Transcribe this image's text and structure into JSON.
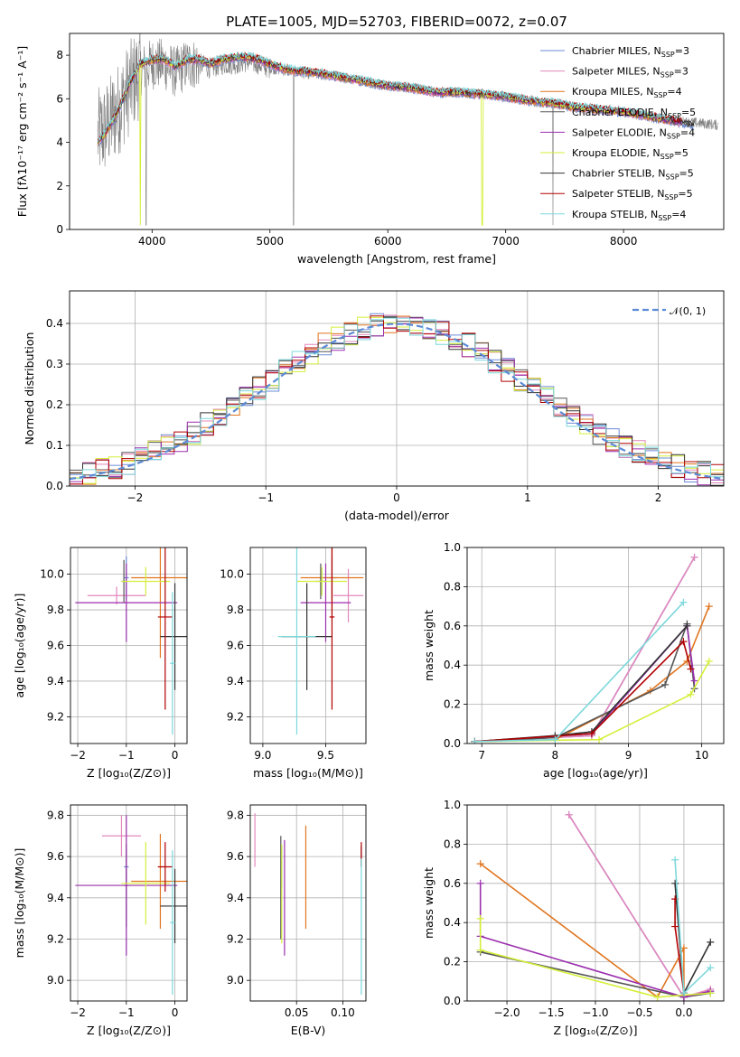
{
  "colors": [
    "#6c8bd7",
    "#e388bd",
    "#e0751f",
    "#555555",
    "#9b2fae",
    "#d5ef3a",
    "#333333",
    "#b10000",
    "#7dd8dc"
  ],
  "chart_data": [
    {
      "id": "spectrum",
      "type": "line",
      "title": "PLATE=1005, MJD=52703, FIBERID=0072, z=0.07",
      "xlabel": "wavelength [Angstrom, rest frame]",
      "ylabel": "Flux [fλ10⁻¹⁷ erg cm⁻² s⁻¹ A⁻¹]",
      "xlim": [
        3300,
        8850
      ],
      "ylim": [
        0,
        9
      ],
      "xticks": [
        "4000",
        "5000",
        "6000",
        "7000",
        "8000"
      ],
      "xtick_values": [
        4000,
        5000,
        6000,
        7000,
        8000
      ],
      "yticks": [
        "0",
        "2",
        "4",
        "6",
        "8"
      ],
      "ytick_values": [
        0,
        2,
        4,
        6,
        8
      ],
      "data_series": {
        "name": "",
        "color": "#808080",
        "x": [
          3540,
          3600,
          3700,
          3800,
          3900,
          4000,
          4100,
          4200,
          4300,
          4400,
          4500,
          4600,
          4700,
          4800,
          4900,
          5000,
          5100,
          5200,
          5400,
          5600,
          5800,
          6000,
          6200,
          6400,
          6600,
          6800,
          7000,
          7200,
          7400,
          7600,
          7800,
          8000,
          8200,
          8400,
          8600,
          8800
        ],
        "y": [
          4.3,
          4.6,
          5.4,
          6.4,
          7.3,
          7.6,
          7.6,
          7.2,
          7.6,
          7.6,
          7.4,
          7.6,
          7.6,
          7.7,
          7.6,
          7.4,
          7.3,
          7.2,
          7.1,
          7.0,
          6.8,
          6.6,
          6.5,
          6.3,
          6.3,
          6.2,
          6.1,
          5.9,
          5.8,
          5.6,
          5.5,
          5.4,
          5.2,
          5.0,
          4.9,
          4.8
        ]
      },
      "model_series": {
        "x": [
          3540,
          3600,
          3700,
          3800,
          3900,
          4000,
          4100,
          4200,
          4300,
          4400,
          4500,
          4600,
          4700,
          4800,
          4900,
          5000,
          5100,
          5200,
          5400,
          5600,
          5800,
          6000,
          6200,
          6400,
          6600,
          6800,
          7000,
          7200,
          7400,
          7600,
          7800,
          8000,
          8200,
          8400,
          8600
        ],
        "y": [
          4.0,
          4.4,
          5.3,
          6.6,
          7.6,
          7.8,
          7.8,
          7.5,
          7.8,
          7.8,
          7.6,
          7.8,
          7.9,
          7.9,
          7.8,
          7.6,
          7.4,
          7.3,
          7.2,
          7.0,
          6.8,
          6.6,
          6.5,
          6.3,
          6.3,
          6.2,
          6.1,
          5.9,
          5.8,
          5.6,
          5.5,
          5.4,
          5.2,
          5.0,
          4.8
        ]
      },
      "legend": [
        {
          "label": "Chabrier MILES, N",
          "sub": "SSP",
          "val": "=3"
        },
        {
          "label": "Salpeter MILES, N",
          "sub": "SSP",
          "val": "=3"
        },
        {
          "label": "Kroupa MILES, N",
          "sub": "SSP",
          "val": "=4"
        },
        {
          "label": "Chabrier ELODIE, N",
          "sub": "SSP",
          "val": "=5"
        },
        {
          "label": "Salpeter ELODIE, N",
          "sub": "SSP",
          "val": "=4"
        },
        {
          "label": "Kroupa ELODIE, N",
          "sub": "SSP",
          "val": "=5"
        },
        {
          "label": "Chabrier STELIB, N",
          "sub": "SSP",
          "val": "=5"
        },
        {
          "label": "Salpeter STELIB, N",
          "sub": "SSP",
          "val": "=5"
        },
        {
          "label": "Kroupa STELIB, N",
          "sub": "SSP",
          "val": "=4"
        }
      ],
      "grid": false
    },
    {
      "id": "residuals",
      "type": "line",
      "title": "",
      "xlabel": "(data-model)/error",
      "ylabel": "Normed distribution",
      "xlim": [
        -2.5,
        2.5
      ],
      "ylim": [
        0,
        0.48
      ],
      "xticks": [
        "−2",
        "−1",
        "0",
        "1",
        "2"
      ],
      "xtick_values": [
        -2,
        -1,
        0,
        1,
        2
      ],
      "yticks": [
        "0.0",
        "0.1",
        "0.2",
        "0.3",
        "0.4"
      ],
      "ytick_values": [
        0,
        0.1,
        0.2,
        0.3,
        0.4
      ],
      "legend": [
        {
          "label": "𝒩(0, 1)"
        }
      ],
      "normal_curve": {
        "mean": 0,
        "sigma": 1,
        "color": "#5b8ad6"
      },
      "hist_edges": [
        -2.5,
        -2.4,
        -2.3,
        -2.2,
        -2.1,
        -2.0,
        -1.9,
        -1.8,
        -1.7,
        -1.6,
        -1.5,
        -1.4,
        -1.3,
        -1.2,
        -1.1,
        -1.0,
        -0.9,
        -0.8,
        -0.7,
        -0.6,
        -0.5,
        -0.4,
        -0.3,
        -0.2,
        -0.1,
        0.0,
        0.1,
        0.2,
        0.3,
        0.4,
        0.5,
        0.6,
        0.7,
        0.8,
        0.9,
        1.0,
        1.1,
        1.2,
        1.3,
        1.4,
        1.5,
        1.6,
        1.7,
        1.8,
        1.9,
        2.0,
        2.1,
        2.2,
        2.3,
        2.4,
        2.5
      ],
      "grid": true
    },
    {
      "id": "age-vs-z",
      "type": "scatter",
      "xlabel": "Z [log₁₀(Z/Z⊙)]",
      "ylabel": "age  [log₁₀(age/yr)]",
      "xlim": [
        -2.15,
        0.25
      ],
      "ylim": [
        9.05,
        10.15
      ],
      "xticks": [
        "−2",
        "−1",
        "0"
      ],
      "xtick_values": [
        -2,
        -1,
        0
      ],
      "yticks": [
        "9.2",
        "9.4",
        "9.6",
        "9.8",
        "10.0"
      ],
      "ytick_values": [
        9.2,
        9.4,
        9.6,
        9.8,
        10.0
      ],
      "points": [
        {
          "x": -1.0,
          "y": 9.98,
          "ex": 0.05,
          "ey": 0.12,
          "c": 0
        },
        {
          "x": -1.2,
          "y": 9.88,
          "ex": 0.6,
          "ey": 0.05,
          "c": 1
        },
        {
          "x": -0.3,
          "y": 9.98,
          "ex": 0.6,
          "ey": 0.45,
          "c": 2
        },
        {
          "x": -1.05,
          "y": 9.96,
          "ex": 0.05,
          "ey": 0.12,
          "c": 3
        },
        {
          "x": -1.0,
          "y": 9.84,
          "ex": 1.05,
          "ey": 0.22,
          "c": 4
        },
        {
          "x": -0.6,
          "y": 9.96,
          "ex": 0.5,
          "ey": 0.08,
          "c": 5
        },
        {
          "x": 0.0,
          "y": 9.65,
          "ex": 0.3,
          "ey": 0.3,
          "c": 6
        },
        {
          "x": -0.2,
          "y": 9.76,
          "ex": 0.15,
          "ey": 0.52,
          "c": 7
        },
        {
          "x": -0.05,
          "y": 9.5,
          "ex": 0.05,
          "ey": 0.4,
          "c": 8
        }
      ]
    },
    {
      "id": "age-vs-mass",
      "type": "scatter",
      "xlabel": "mass [log₁₀(M/M⊙)]",
      "ylabel": "",
      "xlim": [
        8.9,
        9.82
      ],
      "ylim": [
        9.05,
        10.15
      ],
      "xticks": [
        "9.0",
        "9.5"
      ],
      "xtick_values": [
        9.0,
        9.5
      ],
      "yticks": [
        "9.2",
        "9.4",
        "9.6",
        "9.8",
        "10.0"
      ],
      "ytick_values": [
        9.2,
        9.4,
        9.6,
        9.8,
        10.0
      ],
      "points": [
        {
          "x": 9.55,
          "y": 9.98,
          "ex": 0.04,
          "ey": 0.12,
          "c": 0
        },
        {
          "x": 9.68,
          "y": 9.88,
          "ex": 0.12,
          "ey": 0.15,
          "c": 1
        },
        {
          "x": 9.55,
          "y": 9.98,
          "ex": 0.25,
          "ey": 0.2,
          "c": 2
        },
        {
          "x": 9.46,
          "y": 9.96,
          "ex": 0.04,
          "ey": 0.1,
          "c": 3
        },
        {
          "x": 9.5,
          "y": 9.84,
          "ex": 0.2,
          "ey": 0.22,
          "c": 4
        },
        {
          "x": 9.47,
          "y": 9.96,
          "ex": 0.2,
          "ey": 0.08,
          "c": 5
        },
        {
          "x": 9.35,
          "y": 9.65,
          "ex": 0.2,
          "ey": 0.3,
          "c": 6
        },
        {
          "x": 9.55,
          "y": 9.76,
          "ex": 0.02,
          "ey": 0.52,
          "c": 7
        },
        {
          "x": 9.27,
          "y": 9.65,
          "ex": 0.15,
          "ey": 0.55,
          "c": 8
        }
      ]
    },
    {
      "id": "weight-vs-age",
      "type": "line",
      "xlabel": "age  [log₁₀(age/yr)]",
      "ylabel": "mass weight",
      "xlim": [
        6.8,
        10.3
      ],
      "ylim": [
        0,
        1.0
      ],
      "xticks": [
        "7",
        "8",
        "9",
        "10"
      ],
      "xtick_values": [
        7,
        8,
        9,
        10
      ],
      "yticks": [
        "0.0",
        "0.2",
        "0.4",
        "0.6",
        "0.8",
        "1.0"
      ],
      "ytick_values": [
        0,
        0.2,
        0.4,
        0.6,
        0.8,
        1.0
      ],
      "series": [
        {
          "c": 0,
          "x": [
            6.9,
            8.5,
            9.9
          ],
          "y": [
            0.01,
            0.04,
            0.95
          ]
        },
        {
          "c": 1,
          "x": [
            6.9,
            8.5,
            9.9
          ],
          "y": [
            0.01,
            0.04,
            0.95
          ]
        },
        {
          "c": 2,
          "x": [
            6.9,
            8.0,
            9.3,
            9.8,
            10.1
          ],
          "y": [
            0.01,
            0.02,
            0.27,
            0.42,
            0.7
          ]
        },
        {
          "c": 3,
          "x": [
            6.9,
            8.0,
            9.5,
            9.8,
            9.9
          ],
          "y": [
            0.01,
            0.03,
            0.3,
            0.61,
            0.28
          ]
        },
        {
          "c": 4,
          "x": [
            6.9,
            8.5,
            9.8,
            9.9
          ],
          "y": [
            0.01,
            0.05,
            0.6,
            0.32
          ]
        },
        {
          "c": 5,
          "x": [
            6.9,
            8.6,
            9.85,
            10.1
          ],
          "y": [
            0.01,
            0.02,
            0.25,
            0.42
          ]
        },
        {
          "c": 6,
          "x": [
            6.9,
            8.0,
            8.5,
            9.8
          ],
          "y": [
            0.01,
            0.04,
            0.06,
            0.6
          ]
        },
        {
          "c": 7,
          "x": [
            6.9,
            8.5,
            9.75,
            9.85
          ],
          "y": [
            0.01,
            0.05,
            0.52,
            0.38
          ]
        },
        {
          "c": 8,
          "x": [
            6.9,
            8.0,
            9.75
          ],
          "y": [
            0.01,
            0.02,
            0.72
          ]
        }
      ]
    },
    {
      "id": "mass-vs-z",
      "type": "scatter",
      "xlabel": "Z [log₁₀(Z/Z⊙)]",
      "ylabel": "mass [log₁₀(M/M⊙)]",
      "xlim": [
        -2.15,
        0.25
      ],
      "ylim": [
        8.9,
        9.85
      ],
      "xticks": [
        "−2",
        "−1",
        "0"
      ],
      "xtick_values": [
        -2,
        -1,
        0
      ],
      "yticks": [
        "9.0",
        "9.2",
        "9.4",
        "9.6",
        "9.8"
      ],
      "ytick_values": [
        9.0,
        9.2,
        9.4,
        9.6,
        9.8
      ],
      "points": [
        {
          "x": -1.0,
          "y": 9.55,
          "ex": 0.05,
          "ey": 0.08,
          "c": 0
        },
        {
          "x": -1.1,
          "y": 9.7,
          "ex": 0.4,
          "ey": 0.1,
          "c": 1
        },
        {
          "x": -0.3,
          "y": 9.48,
          "ex": 0.6,
          "ey": 0.23,
          "c": 2
        },
        {
          "x": -1.0,
          "y": 9.46,
          "ex": 0.05,
          "ey": 0.2,
          "c": 3
        },
        {
          "x": -1.0,
          "y": 9.46,
          "ex": 1.05,
          "ey": 0.34,
          "c": 4
        },
        {
          "x": -0.6,
          "y": 9.47,
          "ex": 0.5,
          "ey": 0.2,
          "c": 5
        },
        {
          "x": 0.0,
          "y": 9.36,
          "ex": 0.3,
          "ey": 0.18,
          "c": 6
        },
        {
          "x": -0.2,
          "y": 9.55,
          "ex": 0.15,
          "ey": 0.12,
          "c": 7
        },
        {
          "x": -0.05,
          "y": 9.28,
          "ex": 0.05,
          "ey": 0.35,
          "c": 8
        }
      ]
    },
    {
      "id": "mass-vs-ebv",
      "type": "scatter",
      "xlabel": "E(B-V)",
      "ylabel": "",
      "xlim": [
        0.0,
        0.125
      ],
      "ylim": [
        8.9,
        9.85
      ],
      "xticks": [
        "0.05",
        "0.10"
      ],
      "xtick_values": [
        0.05,
        0.1
      ],
      "yticks": [
        "9.0",
        "9.2",
        "9.4",
        "9.6",
        "9.8"
      ],
      "ytick_values": [
        9.0,
        9.2,
        9.4,
        9.6,
        9.8
      ],
      "points": [
        {
          "x": 0.034,
          "y": 9.55,
          "ex": 0,
          "ey": 0.1,
          "c": 0
        },
        {
          "x": 0.005,
          "y": 9.68,
          "ex": 0,
          "ey": 0.13,
          "c": 1
        },
        {
          "x": 0.06,
          "y": 9.5,
          "ex": 0,
          "ey": 0.25,
          "c": 2
        },
        {
          "x": 0.033,
          "y": 9.45,
          "ex": 0,
          "ey": 0.25,
          "c": 3
        },
        {
          "x": 0.037,
          "y": 9.4,
          "ex": 0,
          "ey": 0.28,
          "c": 4
        },
        {
          "x": 0.034,
          "y": 9.42,
          "ex": 0,
          "ey": 0.24,
          "c": 5
        },
        {
          "x": 0.12,
          "y": 9.6,
          "ex": 0,
          "ey": 0.05,
          "c": 6
        },
        {
          "x": 0.12,
          "y": 9.61,
          "ex": 0,
          "ey": 0.06,
          "c": 7
        },
        {
          "x": 0.12,
          "y": 9.26,
          "ex": 0,
          "ey": 0.33,
          "c": 8
        }
      ]
    },
    {
      "id": "weight-vs-z",
      "type": "line",
      "xlabel": "Z [log₁₀(Z/Z⊙)]",
      "ylabel": "mass weight",
      "xlim": [
        -2.45,
        0.45
      ],
      "ylim": [
        0,
        1.0
      ],
      "xticks": [
        "−2.0",
        "−1.5",
        "−1.0",
        "−0.5",
        "0.0"
      ],
      "xtick_values": [
        -2.0,
        -1.5,
        -1.0,
        -0.5,
        0.0
      ],
      "yticks": [
        "0.0",
        "0.2",
        "0.4",
        "0.6",
        "0.8",
        "1.0"
      ],
      "ytick_values": [
        0,
        0.2,
        0.4,
        0.6,
        0.8,
        1.0
      ],
      "series": [
        {
          "c": 0,
          "x": [
            -1.3,
            0.0,
            0.3
          ],
          "y": [
            0.95,
            0.02,
            0.05
          ]
        },
        {
          "c": 1,
          "x": [
            -1.3,
            0.0,
            0.3
          ],
          "y": [
            0.95,
            0.02,
            0.06
          ]
        },
        {
          "c": 2,
          "x": [
            -2.3,
            -0.3,
            0.0,
            0.0
          ],
          "y": [
            0.7,
            0.02,
            0.27,
            0.02
          ]
        },
        {
          "c": 3,
          "x": [
            -2.3,
            0.0,
            0.3
          ],
          "y": [
            0.25,
            0.02,
            0.04
          ]
        },
        {
          "c": 4,
          "x": [
            -2.3,
            -2.3,
            0.0,
            0.3
          ],
          "y": [
            0.6,
            0.33,
            0.02,
            0.05
          ]
        },
        {
          "c": 5,
          "x": [
            -2.3,
            -2.3,
            -0.3,
            0.3
          ],
          "y": [
            0.42,
            0.26,
            0.02,
            0.04
          ]
        },
        {
          "c": 6,
          "x": [
            -0.1,
            0.0,
            0.3
          ],
          "y": [
            0.6,
            0.04,
            0.3
          ]
        },
        {
          "c": 7,
          "x": [
            -0.1,
            -0.1,
            0.0
          ],
          "y": [
            0.52,
            0.38,
            0.04
          ]
        },
        {
          "c": 8,
          "x": [
            -0.1,
            0.0,
            0.3
          ],
          "y": [
            0.72,
            0.04,
            0.17
          ]
        }
      ]
    }
  ]
}
